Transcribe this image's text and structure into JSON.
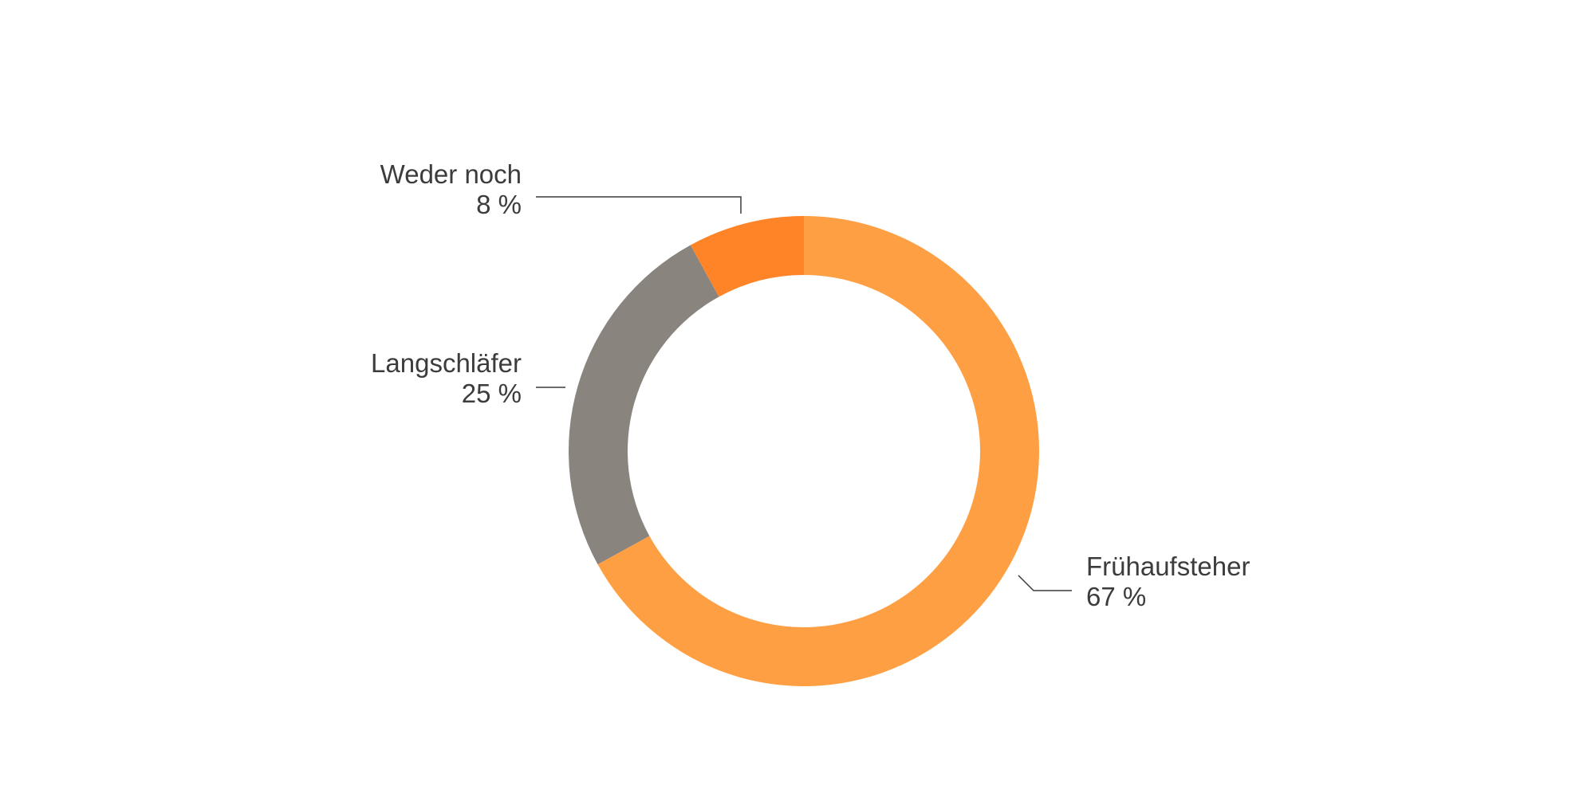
{
  "chart_data": {
    "type": "donut",
    "categories": [
      "Frühaufsteher",
      "Langschläfer",
      "Weder noch"
    ],
    "values": [
      67,
      25,
      8
    ],
    "value_labels": [
      "67 %",
      "25 %",
      "8 %"
    ],
    "colors": [
      "#ff9f43",
      "#8a847e",
      "#ff8427"
    ]
  }
}
